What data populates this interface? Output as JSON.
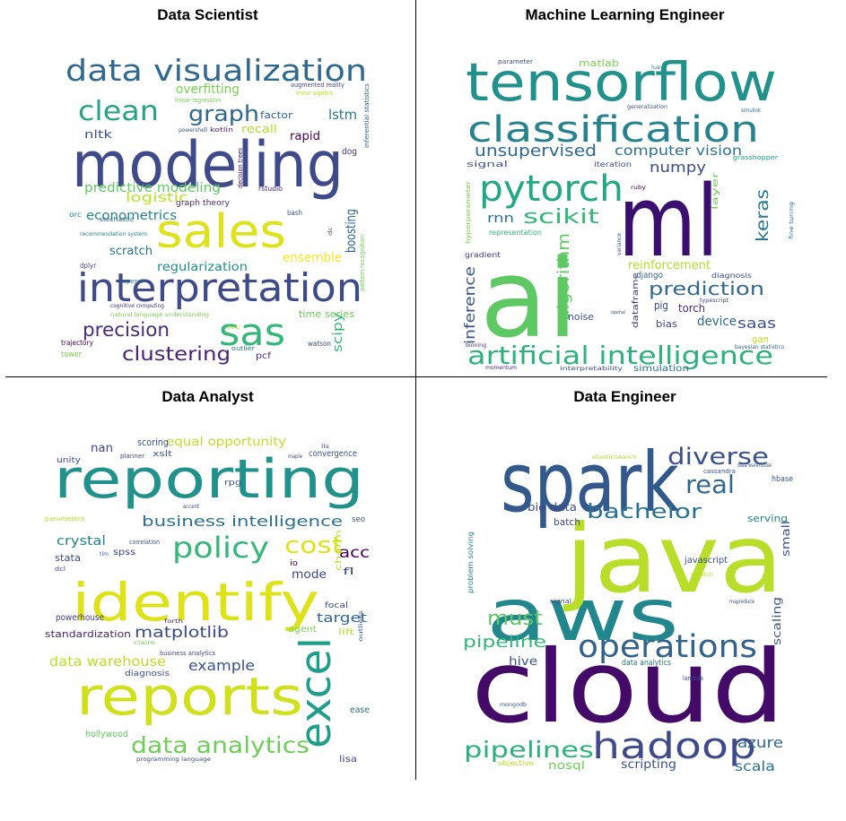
{
  "chart_data": [
    {
      "type": "wordcloud",
      "title": "Data Scientist",
      "words": [
        {
          "text": "modeling",
          "color": "#3e4a89"
        },
        {
          "text": "data visualization",
          "color": "#31688e"
        },
        {
          "text": "interpretation",
          "color": "#3e4a89"
        },
        {
          "text": "sales",
          "color": "#dde318"
        },
        {
          "text": "sas",
          "color": "#35b779"
        },
        {
          "text": "clean",
          "color": "#26a485"
        },
        {
          "text": "graph",
          "color": "#31688e"
        },
        {
          "text": "precision",
          "color": "#472c7a"
        },
        {
          "text": "clustering",
          "color": "#482475"
        },
        {
          "text": "predictive modeling",
          "color": "#5ec962"
        },
        {
          "text": "econometrics",
          "color": "#26828e"
        },
        {
          "text": "logistic",
          "color": "#bddf26"
        },
        {
          "text": "regularization",
          "color": "#21918c"
        },
        {
          "text": "lstm",
          "color": "#2a788e"
        },
        {
          "text": "overfitting",
          "color": "#7ad151"
        },
        {
          "text": "factor",
          "color": "#33638d"
        },
        {
          "text": "rapid",
          "color": "#440154"
        },
        {
          "text": "recall",
          "color": "#b5de2b"
        },
        {
          "text": "ensemble",
          "color": "#fde725"
        },
        {
          "text": "boosting",
          "color": "#31688e"
        },
        {
          "text": "scratch",
          "color": "#2c728e"
        },
        {
          "text": "time series",
          "color": "#6ece58"
        },
        {
          "text": "scipy",
          "color": "#35b779"
        },
        {
          "text": "nltk",
          "color": "#3b528b"
        },
        {
          "text": "dog",
          "color": "#46327e"
        },
        {
          "text": "graph theory",
          "color": "#472d7b"
        },
        {
          "text": "pcf",
          "color": "#46337e"
        },
        {
          "text": "tower",
          "color": "#7ad151"
        },
        {
          "text": "trajectory",
          "color": "#440154"
        },
        {
          "text": "watson",
          "color": "#3e4a89"
        },
        {
          "text": "outlier",
          "color": "#27808e"
        },
        {
          "text": "orc",
          "color": "#21918c"
        },
        {
          "text": "dplyr",
          "color": "#404688"
        },
        {
          "text": "bash",
          "color": "#3b528b"
        },
        {
          "text": "rstudio",
          "color": "#482475"
        },
        {
          "text": "opencl",
          "color": "#2c728e"
        },
        {
          "text": "stochastic",
          "color": "#31688e"
        },
        {
          "text": "recommendation system",
          "color": "#26828e"
        },
        {
          "text": "augmented reality",
          "color": "#3e4a89"
        },
        {
          "text": "linear algebra",
          "color": "#bddf26"
        },
        {
          "text": "linear regression",
          "color": "#7ad151"
        },
        {
          "text": "powershell",
          "color": "#3b528b"
        },
        {
          "text": "kotlin",
          "color": "#482475"
        },
        {
          "text": "decision trees",
          "color": "#440154"
        },
        {
          "text": "inferential statistics",
          "color": "#31688e"
        },
        {
          "text": "pattern recognition",
          "color": "#6ece58"
        },
        {
          "text": "cognitive computing",
          "color": "#46327e"
        },
        {
          "text": "natural language understanding",
          "color": "#7ad151"
        },
        {
          "text": "dc",
          "color": "#3e4a89"
        },
        {
          "text": "eviu",
          "color": "#b5de2b"
        }
      ]
    },
    {
      "type": "wordcloud",
      "title": "Machine Learning Engineer",
      "words": [
        {
          "text": "ai",
          "color": "#5ec962"
        },
        {
          "text": "ml",
          "color": "#3b0f70"
        },
        {
          "text": "tensorflow",
          "color": "#21918c"
        },
        {
          "text": "classification",
          "color": "#26828e"
        },
        {
          "text": "pytorch",
          "color": "#22a884"
        },
        {
          "text": "artificial intelligence",
          "color": "#2db27d"
        },
        {
          "text": "unsupervised",
          "color": "#31688e"
        },
        {
          "text": "computer vision",
          "color": "#2c728e"
        },
        {
          "text": "numpy",
          "color": "#3e4a89"
        },
        {
          "text": "scikit",
          "color": "#35b779"
        },
        {
          "text": "keras",
          "color": "#2a788e"
        },
        {
          "text": "prediction",
          "color": "#31688e"
        },
        {
          "text": "algorithm",
          "color": "#5ec962"
        },
        {
          "text": "inference",
          "color": "#3b528b"
        },
        {
          "text": "rnn",
          "color": "#2c728e"
        },
        {
          "text": "saas",
          "color": "#3b528b"
        },
        {
          "text": "reinforcement",
          "color": "#b5de2b"
        },
        {
          "text": "django",
          "color": "#33638d"
        },
        {
          "text": "dataframe",
          "color": "#443983"
        },
        {
          "text": "torch",
          "color": "#472c7a"
        },
        {
          "text": "pig",
          "color": "#3e4a89"
        },
        {
          "text": "device",
          "color": "#31688e"
        },
        {
          "text": "bias",
          "color": "#414487"
        },
        {
          "text": "noise",
          "color": "#3b528b"
        },
        {
          "text": "layer",
          "color": "#6ece58"
        },
        {
          "text": "signal",
          "color": "#3b528b"
        },
        {
          "text": "matlab",
          "color": "#7ad151"
        },
        {
          "text": "gan",
          "color": "#bddf26"
        },
        {
          "text": "simulation",
          "color": "#2c728e"
        },
        {
          "text": "iteration",
          "color": "#3b528b"
        },
        {
          "text": "grasshopper",
          "color": "#1f9e89"
        },
        {
          "text": "gradient",
          "color": "#443983"
        },
        {
          "text": "representation",
          "color": "#35b779"
        },
        {
          "text": "diagnosis",
          "color": "#3e4a89"
        },
        {
          "text": "hyperparameter",
          "color": "#7ad151"
        },
        {
          "text": "interpretability",
          "color": "#3e4a89"
        },
        {
          "text": "binning",
          "color": "#46327e"
        },
        {
          "text": "momentum",
          "color": "#482475"
        },
        {
          "text": "parameter",
          "color": "#3e4a89"
        },
        {
          "text": "lua",
          "color": "#2c728e"
        },
        {
          "text": "generalization",
          "color": "#3b528b"
        },
        {
          "text": "simulink",
          "color": "#31688e"
        },
        {
          "text": "ruby",
          "color": "#440154"
        },
        {
          "text": "fine tuning",
          "color": "#2c728e"
        },
        {
          "text": "typescript",
          "color": "#3e4a89"
        },
        {
          "text": "bayesian statistics",
          "color": "#31688e"
        },
        {
          "text": "variance",
          "color": "#3b528b"
        },
        {
          "text": "openai",
          "color": "#3e4a89"
        }
      ]
    },
    {
      "type": "wordcloud",
      "title": "Data Analyst",
      "words": [
        {
          "text": "reporting",
          "color": "#21918c"
        },
        {
          "text": "identify",
          "color": "#dde318"
        },
        {
          "text": "reports",
          "color": "#d0e11c"
        },
        {
          "text": "excel",
          "color": "#1f9e89"
        },
        {
          "text": "policy",
          "color": "#35b779"
        },
        {
          "text": "cost",
          "color": "#dde318"
        },
        {
          "text": "data analytics",
          "color": "#6ece58"
        },
        {
          "text": "business intelligence",
          "color": "#2c728e"
        },
        {
          "text": "matplotlib",
          "color": "#3e4a89"
        },
        {
          "text": "example",
          "color": "#3b528b"
        },
        {
          "text": "data warehouse",
          "color": "#bddf26"
        },
        {
          "text": "crystal",
          "color": "#26828e"
        },
        {
          "text": "acc",
          "color": "#440154"
        },
        {
          "text": "target",
          "color": "#31688e"
        },
        {
          "text": "mode",
          "color": "#3e4a89"
        },
        {
          "text": "equal opportunity",
          "color": "#bddf26"
        },
        {
          "text": "nan",
          "color": "#3e4a89"
        },
        {
          "text": "scoring",
          "color": "#3b528b"
        },
        {
          "text": "stata",
          "color": "#3e4a89"
        },
        {
          "text": "spss",
          "color": "#3e4a89"
        },
        {
          "text": "standardization",
          "color": "#482475"
        },
        {
          "text": "powerhouse",
          "color": "#443983"
        },
        {
          "text": "hollywood",
          "color": "#5ec962"
        },
        {
          "text": "diagnosis",
          "color": "#3b528b"
        },
        {
          "text": "convergence",
          "color": "#3b528b"
        },
        {
          "text": "unity",
          "color": "#3e4a89"
        },
        {
          "text": "xslt",
          "color": "#3b528b"
        },
        {
          "text": "fl",
          "color": "#3b528b"
        },
        {
          "text": "io",
          "color": "#440154"
        },
        {
          "text": "focal",
          "color": "#3e4a89"
        },
        {
          "text": "lift",
          "color": "#b5de2b"
        },
        {
          "text": "agent",
          "color": "#7ad151"
        },
        {
          "text": "lisa",
          "color": "#3e4a89"
        },
        {
          "text": "ease",
          "color": "#2c728e"
        },
        {
          "text": "seo",
          "color": "#3b528b"
        },
        {
          "text": "rpg",
          "color": "#3b528b"
        },
        {
          "text": "charm",
          "color": "#bddf26"
        },
        {
          "text": "outliers",
          "color": "#3b528b"
        },
        {
          "text": "correlation",
          "color": "#3b528b"
        },
        {
          "text": "planner",
          "color": "#3e4a89"
        },
        {
          "text": "maple",
          "color": "#3e4a89"
        },
        {
          "text": "lis",
          "color": "#3b528b"
        },
        {
          "text": "forth",
          "color": "#482475"
        },
        {
          "text": "claire",
          "color": "#7ad151"
        },
        {
          "text": "business analytics",
          "color": "#3e4a89"
        },
        {
          "text": "programming language",
          "color": "#3e4a89"
        },
        {
          "text": "parameters",
          "color": "#bddf26"
        },
        {
          "text": "accent",
          "color": "#3e4a89"
        },
        {
          "text": "dcl",
          "color": "#3e4a89"
        },
        {
          "text": "tim",
          "color": "#3b528b"
        }
      ]
    },
    {
      "type": "wordcloud",
      "title": "Data Engineer",
      "words": [
        {
          "text": "spark",
          "color": "#33598c"
        },
        {
          "text": "cloud",
          "color": "#440a68"
        },
        {
          "text": "aws",
          "color": "#22868d"
        },
        {
          "text": "java",
          "color": "#b8de29"
        },
        {
          "text": "hadoop",
          "color": "#3e4a89"
        },
        {
          "text": "operations",
          "color": "#33638d"
        },
        {
          "text": "diverse",
          "color": "#3b528b"
        },
        {
          "text": "real",
          "color": "#31688e"
        },
        {
          "text": "bachelor",
          "color": "#2c728e"
        },
        {
          "text": "must",
          "color": "#5ec962"
        },
        {
          "text": "pipeline",
          "color": "#35b779"
        },
        {
          "text": "pipelines",
          "color": "#2db27d"
        },
        {
          "text": "azure",
          "color": "#31688e"
        },
        {
          "text": "scala",
          "color": "#2c728e"
        },
        {
          "text": "big data",
          "color": "#3e4a89"
        },
        {
          "text": "hive",
          "color": "#3b528b"
        },
        {
          "text": "nosql",
          "color": "#6ece58"
        },
        {
          "text": "scripting",
          "color": "#3b528b"
        },
        {
          "text": "serving",
          "color": "#26828e"
        },
        {
          "text": "small",
          "color": "#3b528b"
        },
        {
          "text": "scaling",
          "color": "#3b528b"
        },
        {
          "text": "batch",
          "color": "#3e4a89"
        },
        {
          "text": "javascript",
          "color": "#3b528b"
        },
        {
          "text": "data analytics",
          "color": "#2c728e"
        },
        {
          "text": "objective",
          "color": "#bddf26"
        },
        {
          "text": "lambda",
          "color": "#3b528b"
        },
        {
          "text": "hbase",
          "color": "#3b528b"
        },
        {
          "text": "problem solving",
          "color": "#26828e"
        },
        {
          "text": "signal",
          "color": "#3e4a89"
        },
        {
          "text": "cassandra",
          "color": "#3b528b"
        },
        {
          "text": "elasticsearch",
          "color": "#b5de2b"
        },
        {
          "text": "data warehouse",
          "color": "#3b528b"
        },
        {
          "text": "mapreduce",
          "color": "#3b528b"
        },
        {
          "text": "mongodb",
          "color": "#3b528b"
        },
        {
          "text": "scratch",
          "color": "#bddf26"
        }
      ]
    }
  ]
}
